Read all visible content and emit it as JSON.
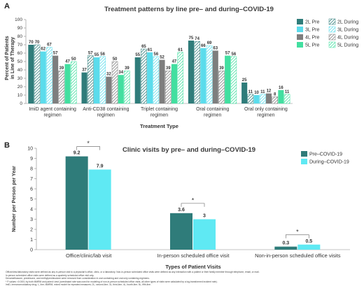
{
  "chart_data": [
    {
      "panel": "A",
      "type": "bar",
      "title": "Treatment patterns by line pre– and during–COVID-19",
      "xlabel": "Treatment Type",
      "ylabel": "Percent of Patients in Line of Therapy",
      "ylim": [
        0,
        100
      ],
      "yticks": [
        0,
        10,
        20,
        30,
        40,
        50,
        60,
        70,
        80,
        90,
        100
      ],
      "legend_position": "right",
      "categories": [
        [
          "ImiD agent containing",
          "regimen"
        ],
        [
          "Anti-CD38 containing",
          "regimen"
        ],
        [
          "Triplet containing",
          "regimen"
        ],
        [
          "Oral containing",
          "regimen"
        ],
        [
          "Oral only containing",
          "regimen"
        ]
      ],
      "series": [
        {
          "name": "2L Pre",
          "color": "#2f7c7a",
          "hatched": false,
          "values": [
            70,
            37,
            55,
            75,
            25
          ]
        },
        {
          "name": "2L During",
          "color": "#2f7c7a",
          "hatched": true,
          "values": [
            70,
            57,
            65,
            74,
            11
          ]
        },
        {
          "name": "3L Pre",
          "color": "#5bdcec",
          "hatched": false,
          "values": [
            62,
            55,
            61,
            66,
            10
          ]
        },
        {
          "name": "3L During",
          "color": "#5bdcec",
          "hatched": true,
          "values": [
            67,
            56,
            56,
            69,
            11
          ]
        },
        {
          "name": "4L Pre",
          "color": "#7e7e7e",
          "hatched": false,
          "values": [
            57,
            32,
            52,
            63,
            12
          ]
        },
        {
          "name": "4L During",
          "color": "#7e7e7e",
          "hatched": true,
          "values": [
            39,
            50,
            39,
            39,
            8
          ]
        },
        {
          "name": "5L Pre",
          "color": "#42dfa0",
          "hatched": false,
          "values": [
            47,
            34,
            47,
            57,
            16
          ]
        },
        {
          "name": "5L During",
          "color": "#42dfa0",
          "hatched": true,
          "values": [
            50,
            39,
            61,
            56,
            11
          ]
        }
      ]
    },
    {
      "panel": "B",
      "type": "bar",
      "title": "Clinic visits by pre– and during–COVID-19",
      "xlabel": "Types of Patient Visits",
      "ylabel": "Number per Person per Year",
      "ylim": [
        0,
        10
      ],
      "yticks": [
        0,
        1,
        2,
        3,
        4,
        5,
        6,
        7,
        8,
        9,
        10
      ],
      "legend_position": "top-right",
      "significance_marker": "*",
      "categories": [
        "Office/clinic/lab visit",
        "In-person scheduled office visit",
        "Non-in-person scheduled office visits"
      ],
      "series": [
        {
          "name": "Pre–COVID-19",
          "color": "#2f7c7a",
          "values": [
            9.2,
            3.6,
            0.3
          ]
        },
        {
          "name": "During–COVID-19",
          "color": "#5fe9f3",
          "values": [
            7.9,
            3,
            0.5
          ]
        }
      ]
    }
  ],
  "footnotes": [
    "Office/clinic/laboratory visits were defined as any in-person visit to a physician's office, clinic, or a laboratory. Non-in-person scheduled office visits were defined as any interaction with a patient or their family member through telephone, email, or mail.",
    "In-person scheduled office visits were defined as a quarterly scheduled office visit only.",
    "Dexamethasone, prednisone, and methylprednisolone were removed from consideration in oral containing and oral only containing regimens.",
    "* P-values <0.0001 by both MMRM and paired t-test (overdistant rate was used for modeling of non-in-person scheduled office visits, all other types of visits were calculated by a log-transformed incident rate).",
    "ImiD, immunomodulatory drug; L, line; MMRM, mixed model for repeated measures; 2L, second-line; 3L, third-line; 4L, fourth-line; 5L, fifth-line."
  ]
}
